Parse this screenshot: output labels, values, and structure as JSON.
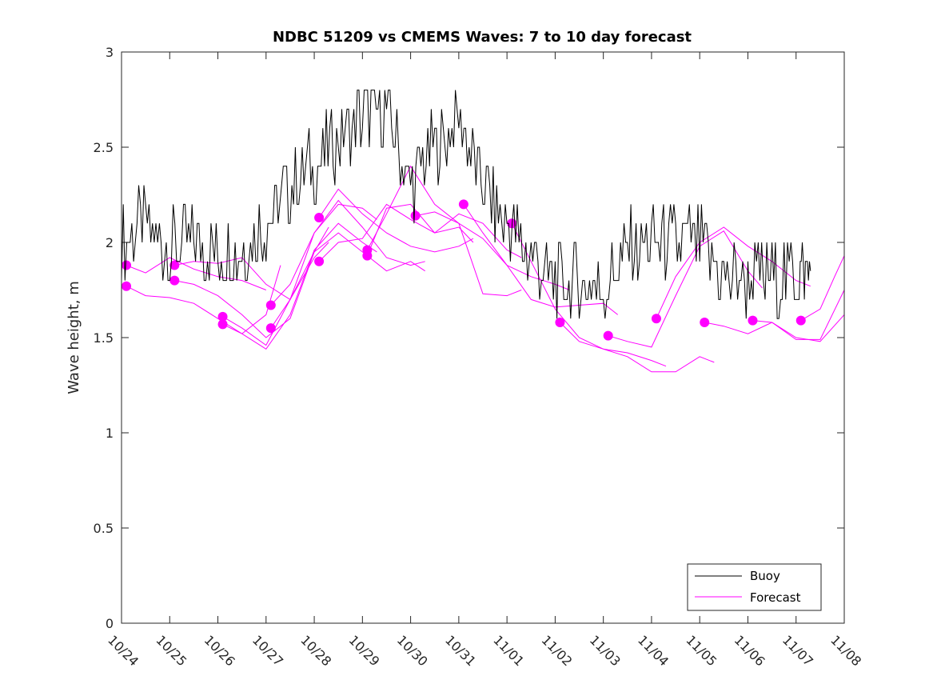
{
  "chart_data": {
    "type": "line",
    "title": "NDBC 51209 vs CMEMS Waves: 7 to 10 day forecast",
    "xlabel": "",
    "ylabel": "Wave height, m",
    "x_tick_labels": [
      "10/24",
      "10/25",
      "10/26",
      "10/27",
      "10/28",
      "10/29",
      "10/30",
      "10/31",
      "11/01",
      "11/02",
      "11/03",
      "11/04",
      "11/05",
      "11/06",
      "11/07",
      "11/08"
    ],
    "xlim_days": [
      0,
      15
    ],
    "ylim": [
      0,
      3
    ],
    "y_ticks": [
      0,
      0.5,
      1,
      1.5,
      2,
      2.5,
      3
    ],
    "y_tick_labels": [
      "0",
      "0.5",
      "1",
      "1.5",
      "2",
      "2.5",
      "3"
    ],
    "legend": {
      "location": "bottom-right",
      "entries": [
        {
          "label": "Buoy",
          "color": "#000000"
        },
        {
          "label": "Forecast",
          "color": "#ff00ff"
        }
      ]
    },
    "colors": {
      "buoy": "#000000",
      "forecast": "#ff00ff"
    },
    "series": [
      {
        "name": "Buoy",
        "x_days": [
          0,
          0.5,
          1,
          1.5,
          2,
          2.5,
          3,
          3.5,
          4,
          4.5,
          5,
          5.5,
          6,
          6.5,
          7,
          7.5,
          8,
          8.5,
          9,
          9.5,
          10,
          10.5,
          11,
          11.5,
          12,
          12.5,
          13,
          13.5,
          14,
          14.3
        ],
        "values": [
          2.0,
          2.1,
          1.95,
          2.0,
          1.95,
          1.95,
          2.1,
          2.3,
          2.4,
          2.55,
          2.65,
          2.7,
          2.3,
          2.5,
          2.65,
          2.3,
          2.1,
          1.9,
          1.8,
          1.8,
          1.75,
          1.95,
          2.0,
          2.0,
          2.0,
          1.8,
          1.8,
          1.8,
          1.85,
          1.85
        ]
      }
    ],
    "forecast_runs": [
      {
        "x_days": [
          0.1,
          0.5,
          1.0,
          1.5,
          2.0,
          2.5,
          3.0
        ],
        "values": [
          1.88,
          1.84,
          1.92,
          1.86,
          1.82,
          1.8,
          1.75
        ]
      },
      {
        "x_days": [
          0.1,
          0.5,
          1.0,
          1.5,
          2.0,
          2.5,
          3.0,
          3.3
        ],
        "values": [
          1.77,
          1.72,
          1.71,
          1.68,
          1.6,
          1.52,
          1.62,
          1.88
        ]
      },
      {
        "x_days": [
          1.1,
          1.5,
          2.0,
          2.5,
          3.0,
          3.5,
          4.0,
          4.3
        ],
        "values": [
          1.88,
          1.9,
          1.89,
          1.92,
          1.78,
          1.7,
          1.92,
          2.0
        ]
      },
      {
        "x_days": [
          1.1,
          1.5,
          2.0,
          2.5,
          3.0,
          3.5,
          4.0,
          4.3
        ],
        "values": [
          1.8,
          1.78,
          1.72,
          1.62,
          1.5,
          1.6,
          1.95,
          2.08
        ]
      },
      {
        "x_days": [
          2.1,
          2.5,
          3.0,
          3.5,
          4.0,
          4.5,
          5.0,
          5.3
        ],
        "values": [
          1.61,
          1.55,
          1.46,
          1.7,
          2.05,
          2.2,
          2.18,
          2.12
        ]
      },
      {
        "x_days": [
          2.1,
          2.5,
          3.0,
          3.5,
          4.0,
          4.5,
          5.0,
          5.3
        ],
        "values": [
          1.57,
          1.52,
          1.44,
          1.62,
          1.96,
          2.1,
          2.0,
          1.95
        ]
      },
      {
        "x_days": [
          3.1,
          3.5,
          4.0,
          4.5,
          5.0,
          5.5,
          6.0,
          6.3
        ],
        "values": [
          1.67,
          1.78,
          2.05,
          2.22,
          2.08,
          1.92,
          1.88,
          1.9
        ]
      },
      {
        "x_days": [
          3.1,
          3.5,
          4.0,
          4.5,
          5.0,
          5.5,
          6.0,
          6.3
        ],
        "values": [
          1.55,
          1.7,
          1.95,
          2.05,
          1.95,
          1.85,
          1.9,
          1.85
        ]
      },
      {
        "x_days": [
          4.1,
          4.5,
          5.0,
          5.5,
          6.0,
          6.5,
          7.0,
          7.3
        ],
        "values": [
          2.13,
          2.28,
          2.15,
          2.05,
          1.98,
          1.95,
          1.98,
          2.02
        ]
      },
      {
        "x_days": [
          4.1,
          4.5,
          5.0,
          5.5,
          6.0,
          6.5,
          7.0,
          7.3
        ],
        "values": [
          1.9,
          2.0,
          2.02,
          2.2,
          2.12,
          2.05,
          2.08,
          2.0
        ]
      },
      {
        "x_days": [
          5.1,
          5.5,
          6.0,
          6.5,
          7.0,
          7.5,
          8.0,
          8.3
        ],
        "values": [
          1.96,
          2.15,
          2.4,
          2.2,
          2.1,
          1.73,
          1.72,
          1.75
        ]
      },
      {
        "x_days": [
          5.1,
          5.5,
          6.0,
          6.5,
          7.0,
          7.5,
          8.0,
          8.3
        ],
        "values": [
          1.93,
          2.18,
          2.2,
          2.05,
          2.15,
          2.1,
          1.96,
          1.92
        ]
      },
      {
        "x_days": [
          6.1,
          6.5,
          7.0,
          7.5,
          8.0,
          8.5,
          9.0,
          9.3
        ],
        "values": [
          2.14,
          2.16,
          2.1,
          2.02,
          1.88,
          1.82,
          1.78,
          1.75
        ]
      },
      {
        "x_days": [
          7.1,
          7.5,
          8.0,
          8.5,
          9.0,
          9.5,
          10.0,
          10.3
        ],
        "values": [
          2.2,
          2.05,
          1.88,
          1.7,
          1.66,
          1.67,
          1.68,
          1.62
        ]
      },
      {
        "x_days": [
          8.1,
          8.5,
          9.0,
          9.5,
          10.0,
          10.5,
          11.0,
          11.3
        ],
        "values": [
          2.1,
          1.9,
          1.65,
          1.5,
          1.44,
          1.42,
          1.38,
          1.35
        ]
      },
      {
        "x_days": [
          9.1,
          9.5,
          10.0,
          10.5,
          11.0,
          11.5,
          12.0,
          12.3
        ],
        "values": [
          1.58,
          1.48,
          1.44,
          1.4,
          1.32,
          1.32,
          1.4,
          1.37
        ]
      },
      {
        "x_days": [
          10.1,
          10.5,
          11.0,
          11.5,
          12.0,
          12.5,
          13.0,
          13.3
        ],
        "values": [
          1.51,
          1.48,
          1.45,
          1.72,
          1.98,
          2.06,
          1.85,
          1.76
        ]
      },
      {
        "x_days": [
          11.1,
          11.5,
          12.0,
          12.5,
          13.0,
          13.5,
          14.0,
          14.3
        ],
        "values": [
          1.6,
          1.82,
          2.0,
          2.08,
          1.98,
          1.9,
          1.8,
          1.77
        ]
      },
      {
        "x_days": [
          12.1,
          12.5,
          13.0,
          13.5,
          14.0,
          14.5,
          15.0
        ],
        "values": [
          1.58,
          1.56,
          1.52,
          1.58,
          1.5,
          1.48,
          1.62
        ]
      },
      {
        "x_days": [
          13.1,
          13.5,
          14.0,
          14.5,
          15.0
        ],
        "values": [
          1.59,
          1.58,
          1.49,
          1.49,
          1.75
        ]
      },
      {
        "x_days": [
          14.1,
          14.5,
          14.8,
          15.0
        ],
        "values": [
          1.59,
          1.65,
          1.82,
          1.93
        ]
      }
    ]
  }
}
